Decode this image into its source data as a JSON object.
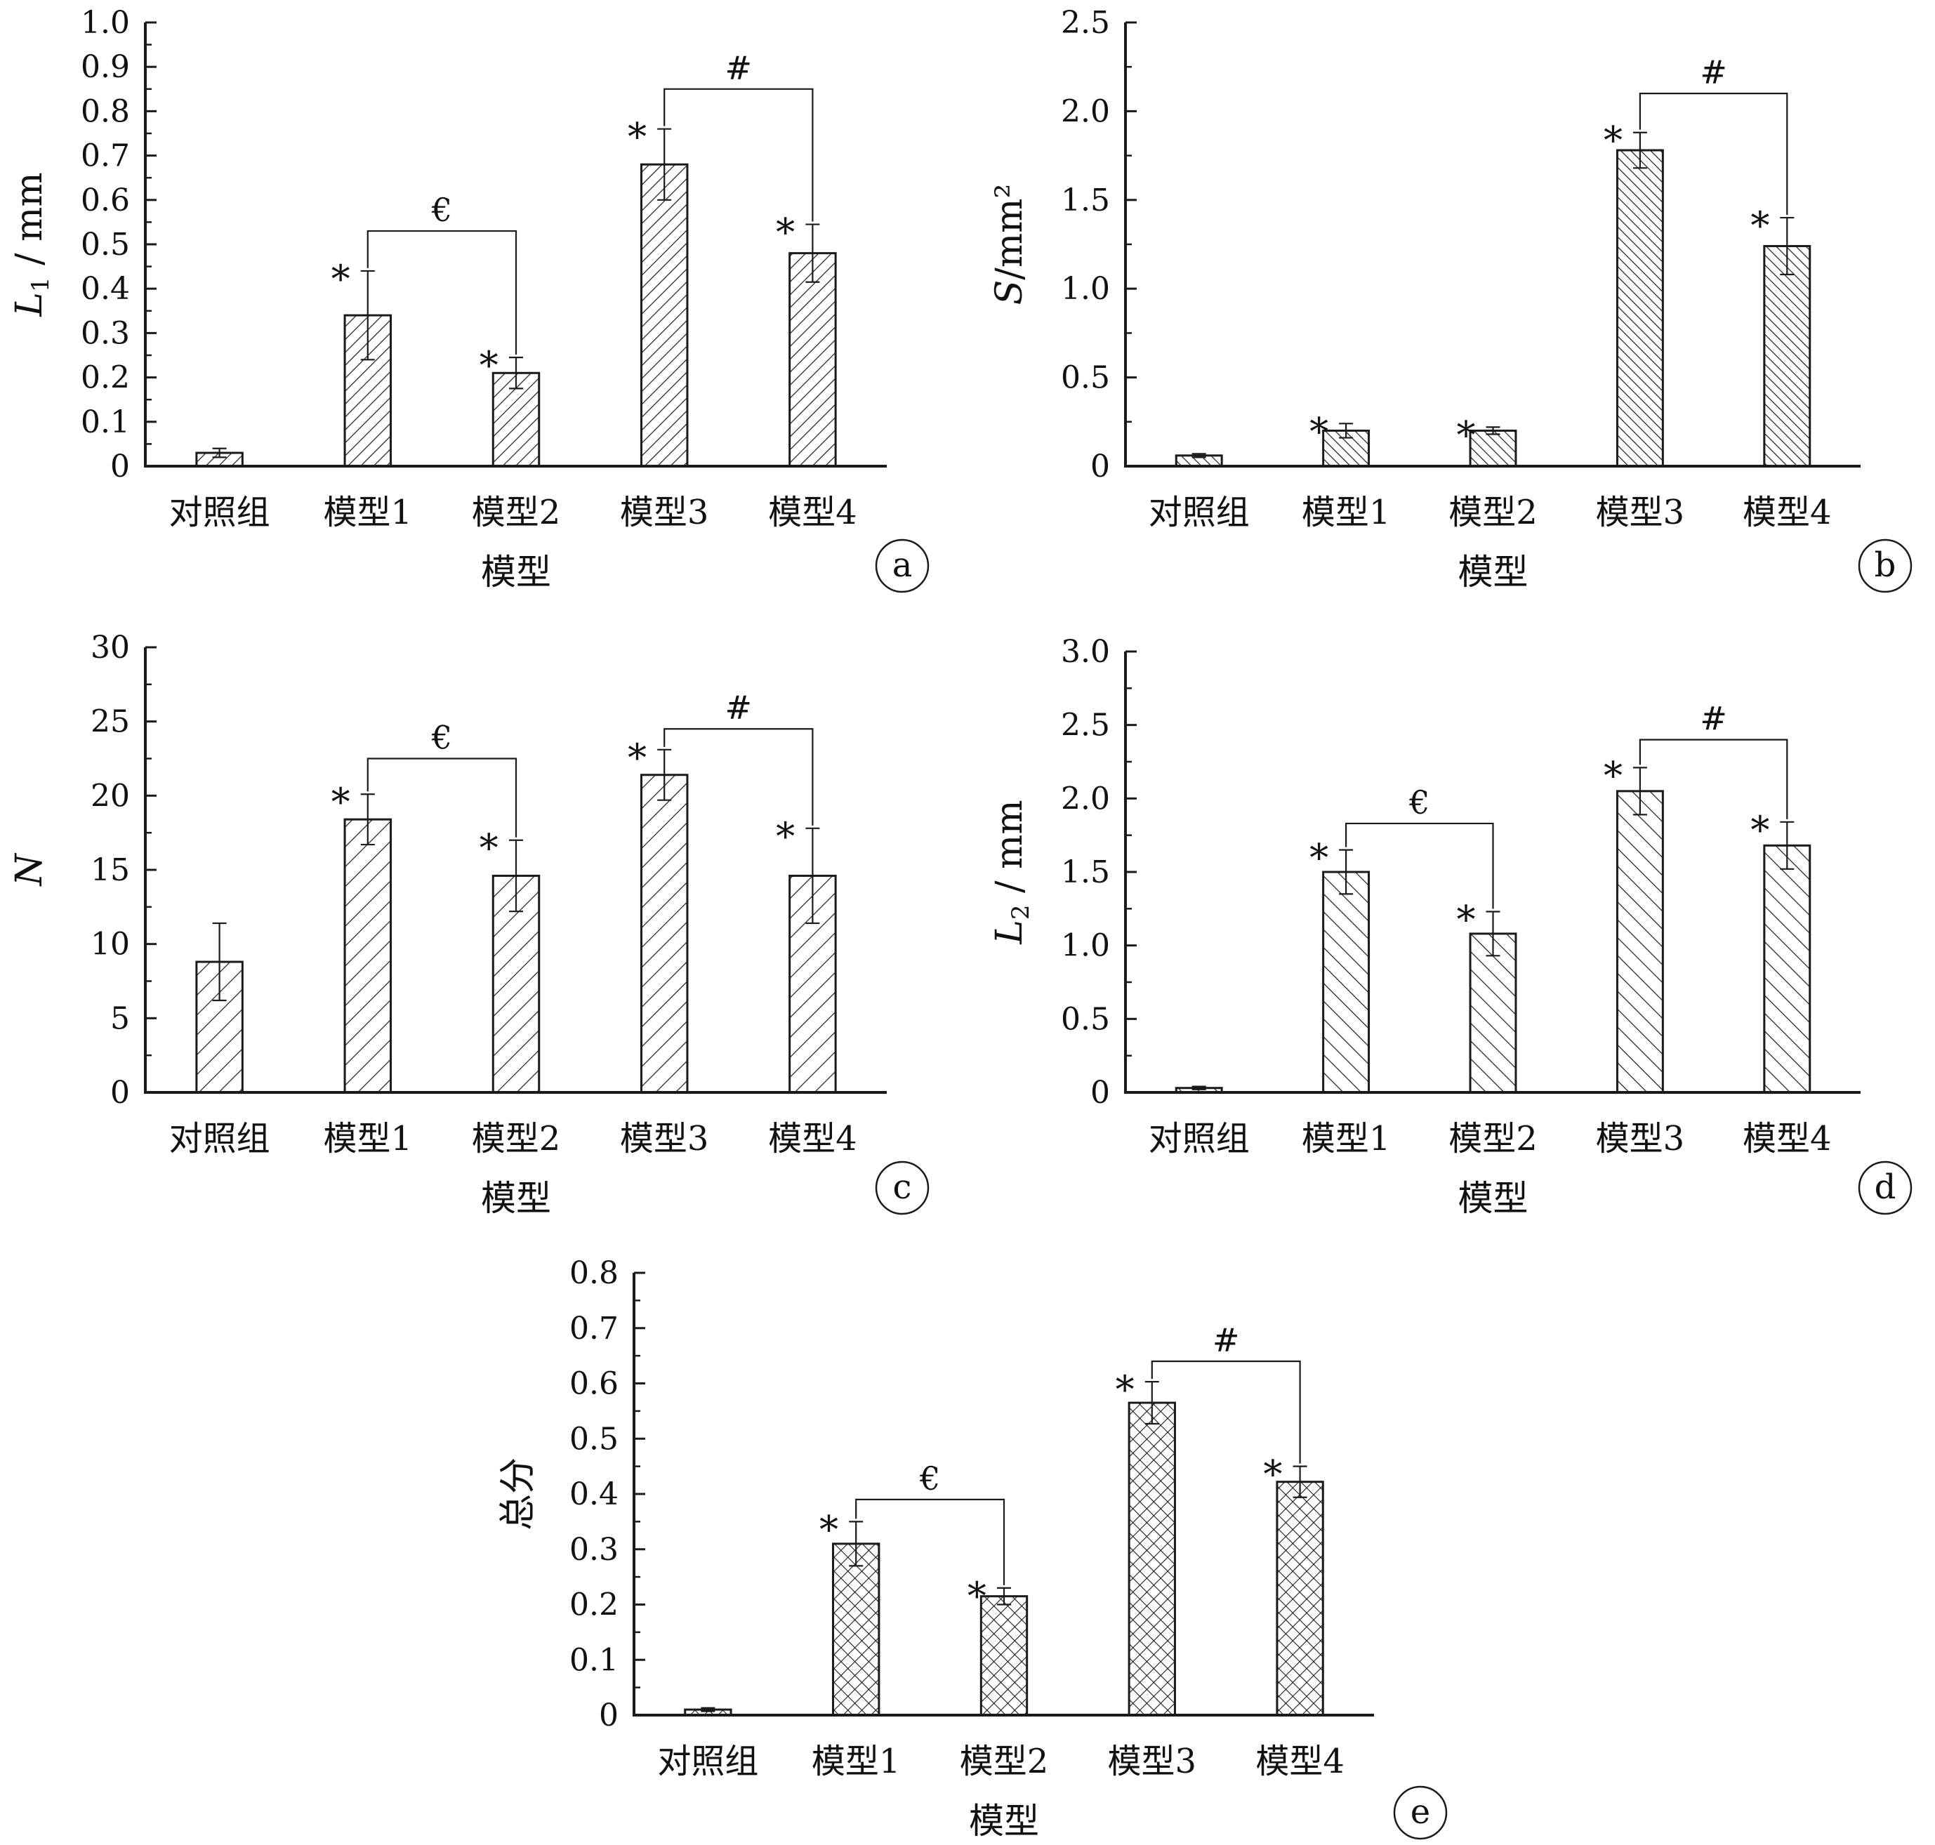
{
  "figure": {
    "colors": {
      "axis": "#1a1a1a",
      "bar_fill": "#ffffff",
      "hatch": "#1a1a1a"
    }
  },
  "chart_data": [
    {
      "panel": "a",
      "type": "bar",
      "categories": [
        "对照组",
        "模型1",
        "模型2",
        "模型3",
        "模型4"
      ],
      "values": [
        0.03,
        0.34,
        0.21,
        0.68,
        0.48
      ],
      "errors": [
        0.01,
        0.1,
        0.035,
        0.08,
        0.065
      ],
      "stars": [
        false,
        true,
        true,
        true,
        true
      ],
      "xlabel": "模型",
      "ylabel": {
        "italic": "L",
        "sub": "1",
        "rest": " / mm"
      },
      "ylim": [
        0,
        1.0
      ],
      "yticks": [
        "0",
        "0.1",
        "0.2",
        "0.3",
        "0.4",
        "0.5",
        "0.6",
        "0.7",
        "0.8",
        "0.9",
        "1.0"
      ],
      "brackets": [
        {
          "from": 1,
          "to": 2,
          "y": 0.53,
          "label": "€"
        },
        {
          "from": 3,
          "to": 4,
          "y": 0.85,
          "label": "#"
        }
      ],
      "hatch": "diag-right"
    },
    {
      "panel": "b",
      "type": "bar",
      "categories": [
        "对照组",
        "模型1",
        "模型2",
        "模型3",
        "模型4"
      ],
      "values": [
        0.06,
        0.2,
        0.2,
        1.78,
        1.24
      ],
      "errors": [
        0.01,
        0.04,
        0.02,
        0.1,
        0.16
      ],
      "stars": [
        false,
        true,
        true,
        true,
        true
      ],
      "xlabel": "模型",
      "ylabel": {
        "italic": "S",
        "sub": "",
        "rest": "/mm²"
      },
      "ylim": [
        0,
        2.5
      ],
      "yticks": [
        "0",
        "0.5",
        "1.0",
        "1.5",
        "2.0",
        "2.5"
      ],
      "brackets": [
        {
          "from": 3,
          "to": 4,
          "y": 2.1,
          "label": "#"
        }
      ],
      "hatch": "diag-left-dense"
    },
    {
      "panel": "c",
      "type": "bar",
      "categories": [
        "对照组",
        "模型1",
        "模型2",
        "模型3",
        "模型4"
      ],
      "values": [
        8.8,
        18.4,
        14.6,
        21.4,
        14.6
      ],
      "errors": [
        2.6,
        1.7,
        2.4,
        1.7,
        3.2
      ],
      "stars": [
        false,
        true,
        true,
        true,
        true
      ],
      "xlabel": "模型",
      "ylabel": {
        "italic": "N",
        "sub": "",
        "rest": ""
      },
      "ylim": [
        0,
        30
      ],
      "yticks": [
        "0",
        "5",
        "10",
        "15",
        "20",
        "25",
        "30"
      ],
      "brackets": [
        {
          "from": 1,
          "to": 2,
          "y": 22.5,
          "label": "€"
        },
        {
          "from": 3,
          "to": 4,
          "y": 24.5,
          "label": "#"
        }
      ],
      "hatch": "diag-right-sparse"
    },
    {
      "panel": "d",
      "type": "bar",
      "categories": [
        "对照组",
        "模型1",
        "模型2",
        "模型3",
        "模型4"
      ],
      "values": [
        0.03,
        1.5,
        1.08,
        2.05,
        1.68
      ],
      "errors": [
        0.01,
        0.15,
        0.15,
        0.16,
        0.16
      ],
      "stars": [
        false,
        true,
        true,
        true,
        true
      ],
      "xlabel": "模型",
      "ylabel": {
        "italic": "L",
        "sub": "2",
        "rest": " / mm"
      },
      "ylim": [
        0,
        3.0
      ],
      "yticks": [
        "0",
        "0.5",
        "1.0",
        "1.5",
        "2.0",
        "2.5",
        "3.0"
      ],
      "brackets": [
        {
          "from": 1,
          "to": 2,
          "y": 1.83,
          "label": "€"
        },
        {
          "from": 3,
          "to": 4,
          "y": 2.4,
          "label": "#"
        }
      ],
      "hatch": "diag-left"
    },
    {
      "panel": "e",
      "type": "bar",
      "categories": [
        "对照组",
        "模型1",
        "模型2",
        "模型3",
        "模型4"
      ],
      "values": [
        0.01,
        0.31,
        0.215,
        0.565,
        0.422
      ],
      "errors": [
        0.003,
        0.04,
        0.015,
        0.038,
        0.028
      ],
      "stars": [
        false,
        true,
        true,
        true,
        true
      ],
      "xlabel": "模型",
      "ylabel": {
        "italic": "",
        "sub": "",
        "rest": "总分"
      },
      "ylim": [
        0,
        0.8
      ],
      "yticks": [
        "0",
        "0.1",
        "0.2",
        "0.3",
        "0.4",
        "0.5",
        "0.6",
        "0.7",
        "0.8"
      ],
      "brackets": [
        {
          "from": 1,
          "to": 2,
          "y": 0.39,
          "label": "€"
        },
        {
          "from": 3,
          "to": 4,
          "y": 0.64,
          "label": "#"
        }
      ],
      "hatch": "cross"
    }
  ]
}
